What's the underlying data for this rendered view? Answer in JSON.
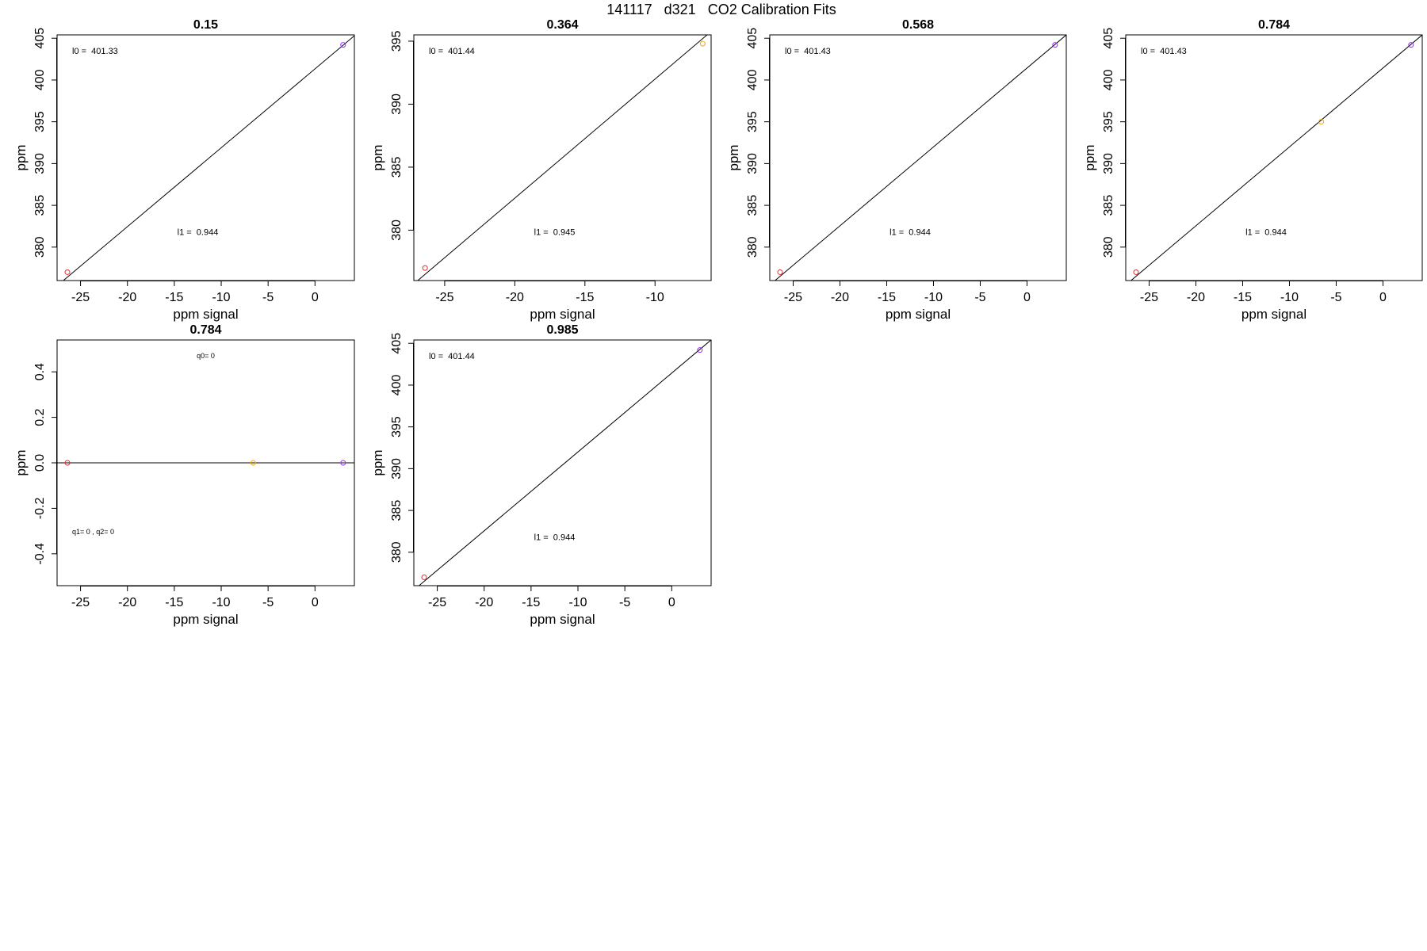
{
  "figure": {
    "title": "141117   d321   CO2 Calibration Fits"
  },
  "chart_data": [
    {
      "type": "scatter",
      "title": "0.15",
      "xlabel": "ppm signal",
      "ylabel": "ppm",
      "xlim": [
        -27.5,
        4.2
      ],
      "ylim": [
        376.0,
        405.4
      ],
      "xticks": [
        -25,
        -20,
        -15,
        -10,
        -5,
        0
      ],
      "yticks": [
        380,
        385,
        390,
        395,
        400,
        405
      ],
      "points": [
        {
          "x": -26.4,
          "y": 377.0,
          "color": "#e03030"
        },
        {
          "x": 3.0,
          "y": 404.2,
          "color": "#9b30ff"
        }
      ],
      "line": {
        "intercept": 401.33,
        "slope": 0.944
      },
      "annotations": [
        {
          "text": "l0 =  401.33",
          "pos": "top-left"
        },
        {
          "text": "l1 =  0.944",
          "pos": "bottom-center"
        }
      ]
    },
    {
      "type": "scatter",
      "title": "0.364",
      "xlabel": "ppm signal",
      "ylabel": "ppm",
      "xlim": [
        -27.2,
        -6.0
      ],
      "ylim": [
        376.0,
        395.5
      ],
      "xticks": [
        -25,
        -20,
        -15,
        -10
      ],
      "yticks": [
        380,
        385,
        390,
        395
      ],
      "points": [
        {
          "x": -26.4,
          "y": 377.0,
          "color": "#e03030"
        },
        {
          "x": -6.6,
          "y": 394.8,
          "color": "#f5a800"
        }
      ],
      "line": {
        "intercept": 401.44,
        "slope": 0.945
      },
      "annotations": [
        {
          "text": "l0 =  401.44",
          "pos": "top-left"
        },
        {
          "text": "l1 =  0.945",
          "pos": "bottom-center"
        }
      ]
    },
    {
      "type": "scatter",
      "title": "0.568",
      "xlabel": "ppm signal",
      "ylabel": "ppm",
      "xlim": [
        -27.5,
        4.2
      ],
      "ylim": [
        376.0,
        405.4
      ],
      "xticks": [
        -25,
        -20,
        -15,
        -10,
        -5,
        0
      ],
      "yticks": [
        380,
        385,
        390,
        395,
        400,
        405
      ],
      "points": [
        {
          "x": -26.4,
          "y": 377.0,
          "color": "#e03030"
        },
        {
          "x": 3.0,
          "y": 404.2,
          "color": "#9b30ff"
        }
      ],
      "line": {
        "intercept": 401.43,
        "slope": 0.944
      },
      "annotations": [
        {
          "text": "l0 =  401.43",
          "pos": "top-left"
        },
        {
          "text": "l1 =  0.944",
          "pos": "bottom-center"
        }
      ]
    },
    {
      "type": "scatter",
      "title": "0.784",
      "xlabel": "ppm signal",
      "ylabel": "ppm",
      "xlim": [
        -27.5,
        4.2
      ],
      "ylim": [
        376.0,
        405.4
      ],
      "xticks": [
        -25,
        -20,
        -15,
        -10,
        -5,
        0
      ],
      "yticks": [
        380,
        385,
        390,
        395,
        400,
        405
      ],
      "points": [
        {
          "x": -26.4,
          "y": 377.0,
          "color": "#e03030"
        },
        {
          "x": -6.6,
          "y": 395.0,
          "color": "#f5a800"
        },
        {
          "x": 3.0,
          "y": 404.2,
          "color": "#9b30ff"
        }
      ],
      "line": {
        "intercept": 401.43,
        "slope": 0.944
      },
      "annotations": [
        {
          "text": "l0 =  401.43",
          "pos": "top-left"
        },
        {
          "text": "l1 =  0.944",
          "pos": "bottom-center"
        }
      ]
    },
    {
      "type": "scatter",
      "title": "0.784",
      "xlabel": "ppm signal",
      "ylabel": "ppm",
      "xlim": [
        -27.5,
        4.2
      ],
      "ylim": [
        -0.54,
        0.54
      ],
      "xticks": [
        -25,
        -20,
        -15,
        -10,
        -5,
        0
      ],
      "yticks": [
        -0.4,
        -0.2,
        0.0,
        0.2,
        0.4
      ],
      "ytick_labels": [
        "-0.4",
        "-0.2",
        "0.0",
        "0.2",
        "0.4"
      ],
      "points": [
        {
          "x": -26.4,
          "y": 0.0,
          "color": "#e03030"
        },
        {
          "x": -6.6,
          "y": 0.0,
          "color": "#f5a800"
        },
        {
          "x": 3.0,
          "y": 0.0,
          "color": "#9b30ff"
        }
      ],
      "line": {
        "intercept": 0.0,
        "slope": 0.0
      },
      "annotations": [
        {
          "text": "q0= 0",
          "pos": "top-center"
        },
        {
          "text": "q1= 0 , q2= 0",
          "pos": "bottom-left"
        }
      ]
    },
    {
      "type": "scatter",
      "title": "0.985",
      "xlabel": "ppm signal",
      "ylabel": "ppm",
      "xlim": [
        -27.5,
        4.2
      ],
      "ylim": [
        376.0,
        405.4
      ],
      "xticks": [
        -25,
        -20,
        -15,
        -10,
        -5,
        0
      ],
      "yticks": [
        380,
        385,
        390,
        395,
        400,
        405
      ],
      "points": [
        {
          "x": -26.4,
          "y": 377.0,
          "color": "#e03030"
        },
        {
          "x": 3.0,
          "y": 404.2,
          "color": "#9b30ff"
        }
      ],
      "line": {
        "intercept": 401.44,
        "slope": 0.944
      },
      "annotations": [
        {
          "text": "l0 =  401.44",
          "pos": "top-left"
        },
        {
          "text": "l1 =  0.944",
          "pos": "bottom-center"
        }
      ]
    }
  ]
}
